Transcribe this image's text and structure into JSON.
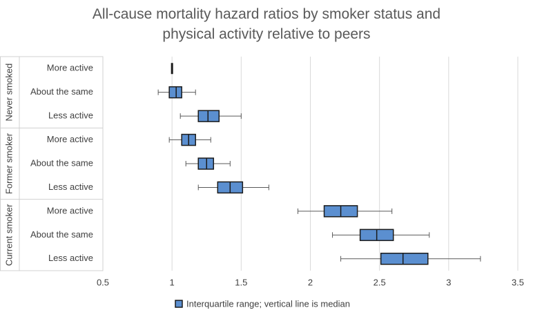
{
  "chart_data": {
    "type": "boxplot",
    "title": "All-cause mortality hazard ratios by smoker status and physical activity relative to peers",
    "groups": [
      {
        "name": "Never smoked",
        "categories": [
          "More active",
          "About the same",
          "Less active"
        ]
      },
      {
        "name": "Former smoker",
        "categories": [
          "More active",
          "About the same",
          "Less active"
        ]
      },
      {
        "name": "Current smoker",
        "categories": [
          "More active",
          "About the same",
          "Less active"
        ]
      }
    ],
    "series": [
      {
        "name": "Interquartile range; vertical line is median",
        "color": "#5b8fd0",
        "low": [
          1,
          0.9,
          1.06,
          0.98,
          1.1,
          1.19,
          1.91,
          2.16,
          2.22
        ],
        "q1": [
          1,
          0.98,
          1.19,
          1.07,
          1.19,
          1.33,
          2.1,
          2.36,
          2.51
        ],
        "median": [
          1,
          1.03,
          1.26,
          1.12,
          1.25,
          1.42,
          2.22,
          2.48,
          2.67
        ],
        "q3": [
          1,
          1.07,
          1.34,
          1.17,
          1.3,
          1.51,
          2.34,
          2.6,
          2.85
        ],
        "high": [
          1,
          1.17,
          1.5,
          1.28,
          1.42,
          1.7,
          2.59,
          2.86,
          3.23
        ]
      }
    ],
    "xlim": [
      0.5,
      3.5
    ],
    "xticks": [
      0.5,
      1,
      1.5,
      2,
      2.5,
      3,
      3.5
    ],
    "grid": true
  }
}
